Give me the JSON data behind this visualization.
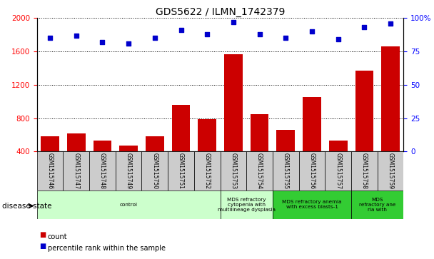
{
  "title": "GDS5622 / ILMN_1742379",
  "samples": [
    "GSM1515746",
    "GSM1515747",
    "GSM1515748",
    "GSM1515749",
    "GSM1515750",
    "GSM1515751",
    "GSM1515752",
    "GSM1515753",
    "GSM1515754",
    "GSM1515755",
    "GSM1515756",
    "GSM1515757",
    "GSM1515758",
    "GSM1515759"
  ],
  "counts": [
    580,
    620,
    530,
    470,
    580,
    960,
    790,
    1570,
    850,
    660,
    1050,
    530,
    1370,
    1660
  ],
  "percentiles": [
    85,
    87,
    82,
    81,
    85,
    91,
    88,
    97,
    88,
    85,
    90,
    84,
    93,
    96
  ],
  "ylim_left": [
    400,
    2000
  ],
  "ylim_right": [
    0,
    100
  ],
  "yticks_left": [
    400,
    800,
    1200,
    1600,
    2000
  ],
  "yticks_right": [
    0,
    25,
    50,
    75,
    100
  ],
  "bar_color": "#cc0000",
  "dot_color": "#0000cc",
  "bg_color": "#ffffff",
  "disease_groups": [
    {
      "label": "control",
      "start": 0,
      "end": 7,
      "color": "#ccffcc"
    },
    {
      "label": "MDS refractory\ncytopenia with\nmultilineage dysplasia",
      "start": 7,
      "end": 9,
      "color": "#ccffcc"
    },
    {
      "label": "MDS refractory anemia\nwith excess blasts-1",
      "start": 9,
      "end": 12,
      "color": "#33cc33"
    },
    {
      "label": "MDS\nrefractory ane\nria with",
      "start": 12,
      "end": 14,
      "color": "#33cc33"
    }
  ],
  "tick_bg_color": "#cccccc",
  "xlabel_disease": "disease state",
  "legend_count": "count",
  "legend_percentile": "percentile rank within the sample",
  "n": 14
}
